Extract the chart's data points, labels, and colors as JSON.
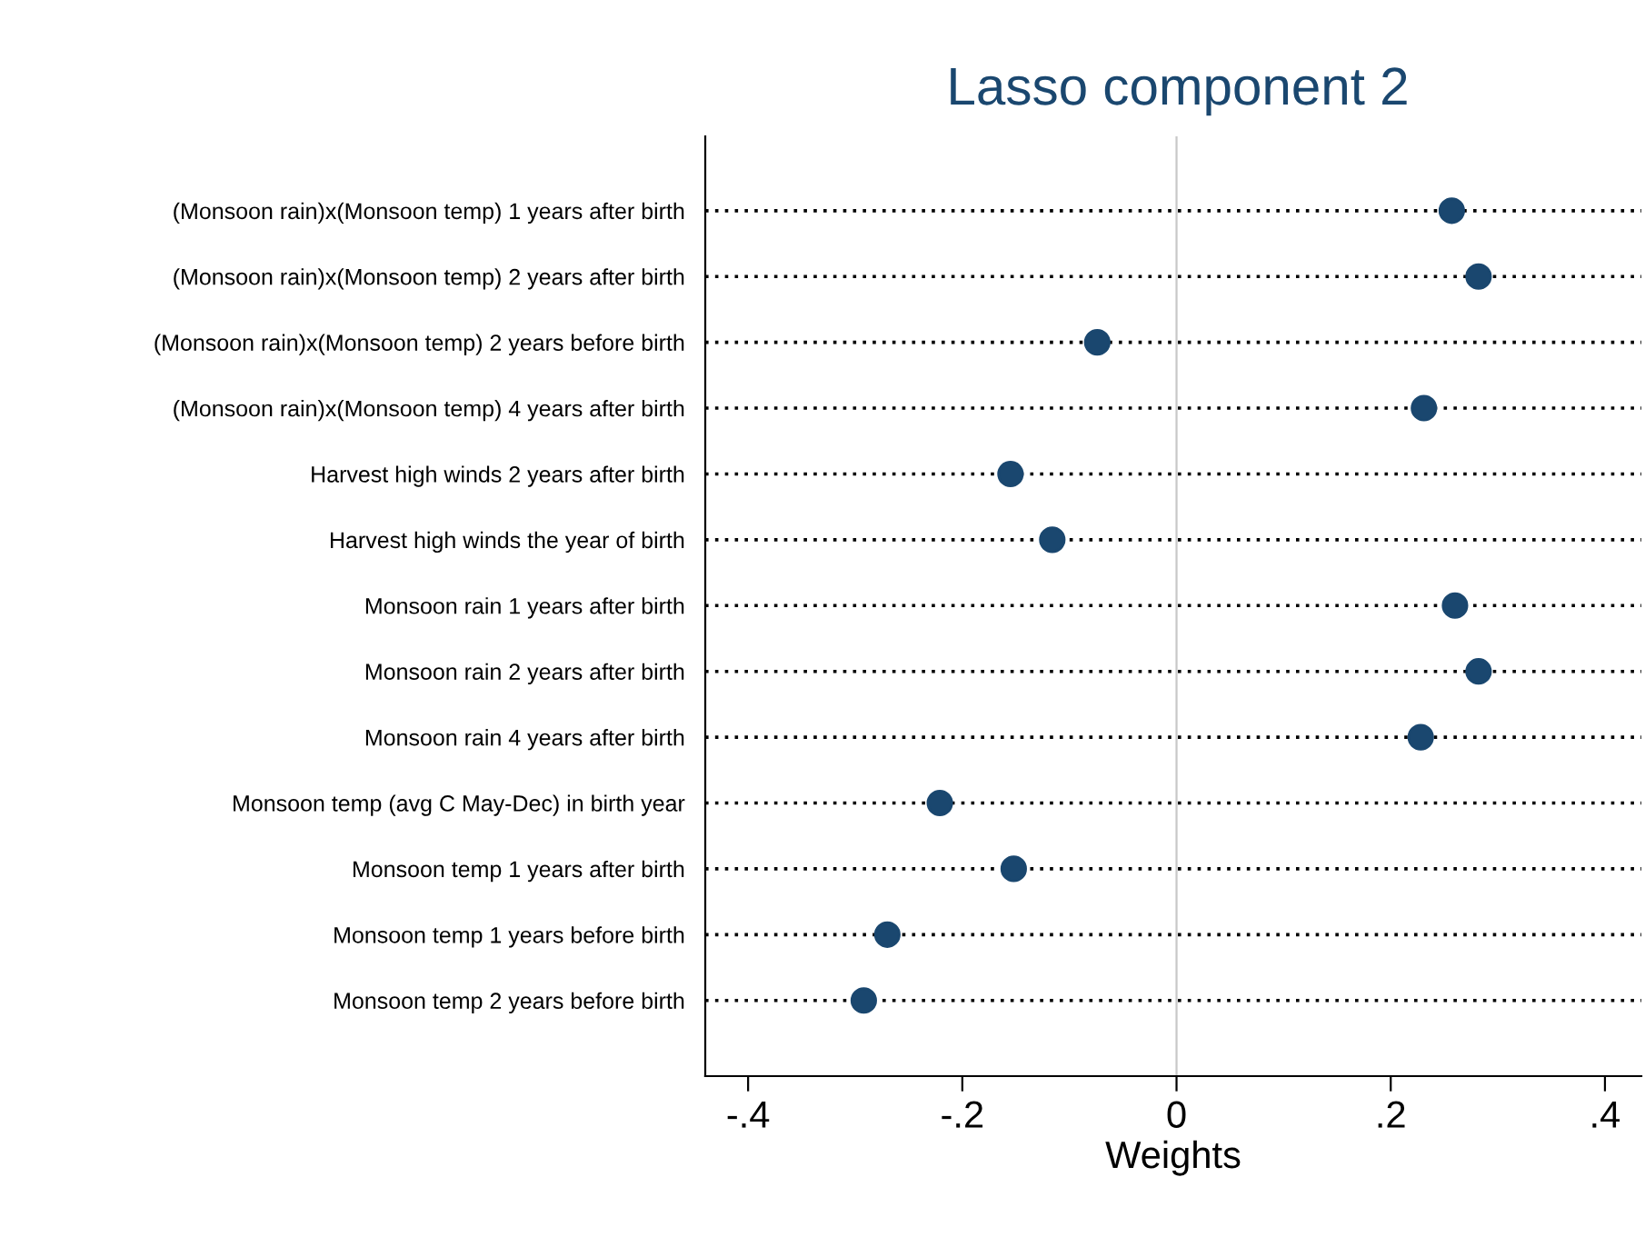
{
  "chart_data": {
    "type": "scatter",
    "orientation": "horizontal",
    "title": "Lasso component 2",
    "xlabel": "Weights",
    "categories": [
      "(Monsoon rain)x(Monsoon temp) 1 years after birth",
      "(Monsoon rain)x(Monsoon temp) 2 years after birth",
      "(Monsoon rain)x(Monsoon temp) 2 years before birth",
      "(Monsoon rain)x(Monsoon temp) 4 years after birth",
      "Harvest high winds 2 years after birth",
      "Harvest high winds the year of birth",
      "Monsoon rain 1 years after birth",
      "Monsoon rain 2 years after birth",
      "Monsoon rain 4 years after birth",
      "Monsoon temp (avg C May-Dec) in birth year",
      "Monsoon temp 1 years after birth",
      "Monsoon temp 1 years before birth",
      "Monsoon temp 2 years before birth"
    ],
    "values": [
      0.257,
      0.282,
      -0.074,
      0.231,
      -0.155,
      -0.116,
      0.26,
      0.282,
      0.228,
      -0.221,
      -0.152,
      -0.27,
      -0.292
    ],
    "color": "#1a476f",
    "marker": "circle",
    "grid": "y",
    "xlim": [
      -0.44,
      0.434
    ],
    "xticks": [
      {
        "value": -0.4,
        "label": "-.4"
      },
      {
        "value": -0.2,
        "label": "-.2"
      },
      0,
      {
        "value": 0.2,
        "label": ".2"
      },
      {
        "value": 0.4,
        "label": ".4"
      }
    ],
    "ref_lines": [
      {
        "axis": "x",
        "value": 0,
        "color": "#c8c8c8"
      }
    ]
  }
}
